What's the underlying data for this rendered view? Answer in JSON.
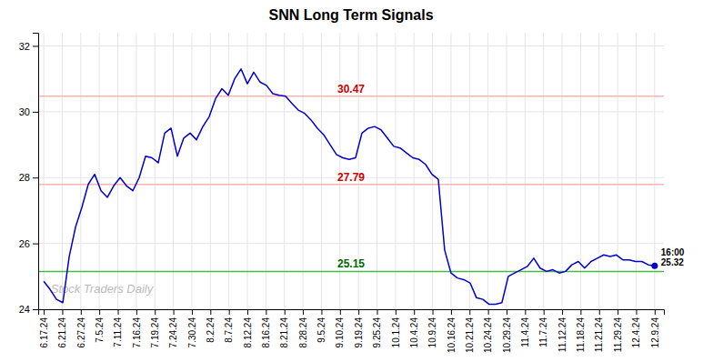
{
  "chart_data": {
    "type": "line",
    "title": "SNN Long Term Signals",
    "x": [
      0,
      0.34375,
      0.6875,
      1.03125,
      1.375,
      1.71875,
      2.0625,
      2.40625,
      2.75,
      3.09375,
      3.4375,
      3.78125,
      4.125,
      4.46875,
      4.8125,
      5.15625,
      5.5,
      5.84375,
      6.1875,
      6.53125,
      6.875,
      7.21875,
      7.5625,
      7.90625,
      8.25,
      8.59375,
      8.9375,
      9.28125,
      9.625,
      9.96875,
      10.3125,
      10.65625,
      11,
      11.34375,
      11.6875,
      12.03125,
      12.375,
      12.71875,
      13.0625,
      13.40625,
      13.75,
      14.09375,
      14.4375,
      14.78125,
      15.125,
      15.46875,
      15.8125,
      16.15625,
      16.5,
      16.84375,
      17.1875,
      17.53125,
      17.875,
      18.21875,
      18.5625,
      18.90625,
      19.25,
      19.59375,
      19.9375,
      20.28125,
      20.625,
      20.96875,
      21.3125,
      21.65625,
      22,
      22.34375,
      22.6875,
      23.03125,
      23.375,
      23.71875,
      24.0625,
      24.40625,
      24.75,
      25.09375,
      25.4375,
      25.78125,
      26.125,
      26.46875,
      26.8125,
      27.15625,
      27.5,
      27.84375,
      28.1875,
      28.53125,
      28.875,
      29.21875,
      29.5625,
      29.90625,
      30.25,
      30.59375,
      30.9375,
      31.28125,
      31.625,
      31.96875,
      32.3125,
      32.65625,
      33
    ],
    "series": [
      {
        "color": "#0000cc",
        "values": [
          24.85,
          24.6,
          24.3,
          24.2,
          25.6,
          26.5,
          27.1,
          27.8,
          28.1,
          27.6,
          27.4,
          27.75,
          28.0,
          27.75,
          27.6,
          28.0,
          28.65,
          28.6,
          28.45,
          29.35,
          29.5,
          28.65,
          29.2,
          29.35,
          29.15,
          29.55,
          29.85,
          30.4,
          30.7,
          30.5,
          31.0,
          31.3,
          30.85,
          31.2,
          30.9,
          30.8,
          30.55,
          30.5,
          30.47,
          30.25,
          30.05,
          29.95,
          29.75,
          29.5,
          29.3,
          29.0,
          28.7,
          28.6,
          28.55,
          28.6,
          29.35,
          29.5,
          29.55,
          29.45,
          29.2,
          28.95,
          28.9,
          28.75,
          28.6,
          28.55,
          28.4,
          28.1,
          27.95,
          25.8,
          25.1,
          24.95,
          24.9,
          24.8,
          24.35,
          24.3,
          24.15,
          24.15,
          24.2,
          25.0,
          25.1,
          25.2,
          25.3,
          25.55,
          25.25,
          25.15,
          25.2,
          25.1,
          25.15,
          25.35,
          25.45,
          25.25,
          25.45,
          25.55,
          25.65,
          25.6,
          25.65,
          25.5,
          25.5,
          25.45,
          25.45,
          25.35,
          25.32
        ]
      }
    ],
    "xlim": [
      -0.3,
      33.5
    ],
    "xticks": [
      {
        "value": 0,
        "label": "6.17.24"
      },
      {
        "value": 1,
        "label": "6.21.24"
      },
      {
        "value": 2,
        "label": "6.27.24"
      },
      {
        "value": 3,
        "label": "7.5.24"
      },
      {
        "value": 4,
        "label": "7.11.24"
      },
      {
        "value": 5,
        "label": "7.16.24"
      },
      {
        "value": 6,
        "label": "7.19.24"
      },
      {
        "value": 7,
        "label": "7.24.24"
      },
      {
        "value": 8,
        "label": "7.30.24"
      },
      {
        "value": 9,
        "label": "8.2.24"
      },
      {
        "value": 10,
        "label": "8.7.24"
      },
      {
        "value": 11,
        "label": "8.12.24"
      },
      {
        "value": 12,
        "label": "8.16.24"
      },
      {
        "value": 13,
        "label": "8.21.24"
      },
      {
        "value": 14,
        "label": "8.28.24"
      },
      {
        "value": 15,
        "label": "9.5.24"
      },
      {
        "value": 16,
        "label": "9.10.24"
      },
      {
        "value": 17,
        "label": "9.19.24"
      },
      {
        "value": 18,
        "label": "9.25.24"
      },
      {
        "value": 19,
        "label": "10.1.24"
      },
      {
        "value": 20,
        "label": "10.4.24"
      },
      {
        "value": 21,
        "label": "10.9.24"
      },
      {
        "value": 22,
        "label": "10.16.24"
      },
      {
        "value": 23,
        "label": "10.21.24"
      },
      {
        "value": 24,
        "label": "10.24.24"
      },
      {
        "value": 25,
        "label": "10.29.24"
      },
      {
        "value": 26,
        "label": "11.4.24"
      },
      {
        "value": 27,
        "label": "11.7.24"
      },
      {
        "value": 28,
        "label": "11.12.24"
      },
      {
        "value": 29,
        "label": "11.18.24"
      },
      {
        "value": 30,
        "label": "11.21.24"
      },
      {
        "value": 31,
        "label": "11.29.24"
      },
      {
        "value": 32,
        "label": "12.4.24"
      },
      {
        "value": 33,
        "label": "12.9.24"
      }
    ],
    "ylim": [
      24.0,
      32.4
    ],
    "yticks": [
      24,
      26,
      28,
      30,
      32
    ],
    "grid": true,
    "hlines": [
      {
        "y": 30.47,
        "color": "#ffb3b3",
        "label": "30.47",
        "label_color": "#cc0000"
      },
      {
        "y": 27.79,
        "color": "#ffb3b3",
        "label": "27.79",
        "label_color": "#cc0000"
      },
      {
        "y": 25.15,
        "color": "#44bb44",
        "label": "25.15",
        "label_color": "#006600"
      }
    ],
    "annotation": "16:00\n25.32",
    "watermark": {
      "text": "Stock Traders Daily",
      "color": "#bbbbbb"
    }
  }
}
